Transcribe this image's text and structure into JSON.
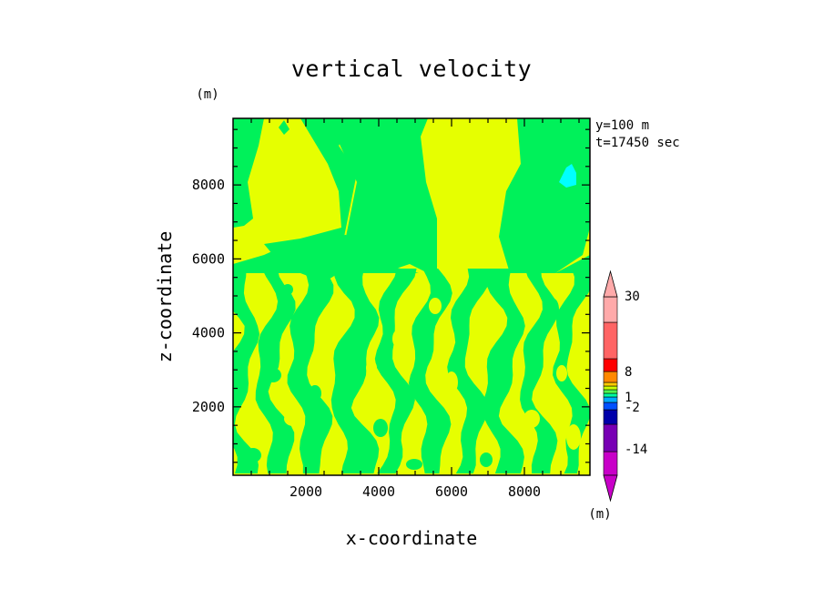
{
  "chart_data": {
    "type": "heatmap",
    "title": "vertical velocity",
    "xlabel": "x-coordinate",
    "ylabel": "z-coordinate",
    "x_unit": "(m)",
    "y_unit": "(m)",
    "annotations": [
      "y=100 m",
      "t=17450 sec"
    ],
    "xlim": [
      0,
      9800
    ],
    "ylim": [
      150,
      9800
    ],
    "x_ticks": [
      2000,
      4000,
      6000,
      8000
    ],
    "x_tick_labels": [
      "2000",
      "4000",
      "6000",
      "8000"
    ],
    "y_ticks": [
      2000,
      4000,
      6000,
      8000
    ],
    "y_tick_labels": [
      "2000",
      "4000",
      "6000",
      "8000"
    ],
    "field_colors": {
      "upward": "#e6ff00",
      "near_zero": "#00f15a",
      "downward": "#00ffff"
    },
    "colorbar": {
      "levels": [
        -14,
        -2,
        1,
        8,
        30
      ],
      "level_labels": [
        "-14",
        "-2",
        "1",
        "8",
        "30"
      ],
      "colors": [
        "#c800c8",
        "#7800b4",
        "#0000aa",
        "#0050ff",
        "#00aaff",
        "#00ffa0",
        "#50ff50",
        "#c8ff00",
        "#ffcc00",
        "#ff8800",
        "#ff0000",
        "#ff6464",
        "#ffaaaa"
      ],
      "unit": "(m)"
    }
  }
}
